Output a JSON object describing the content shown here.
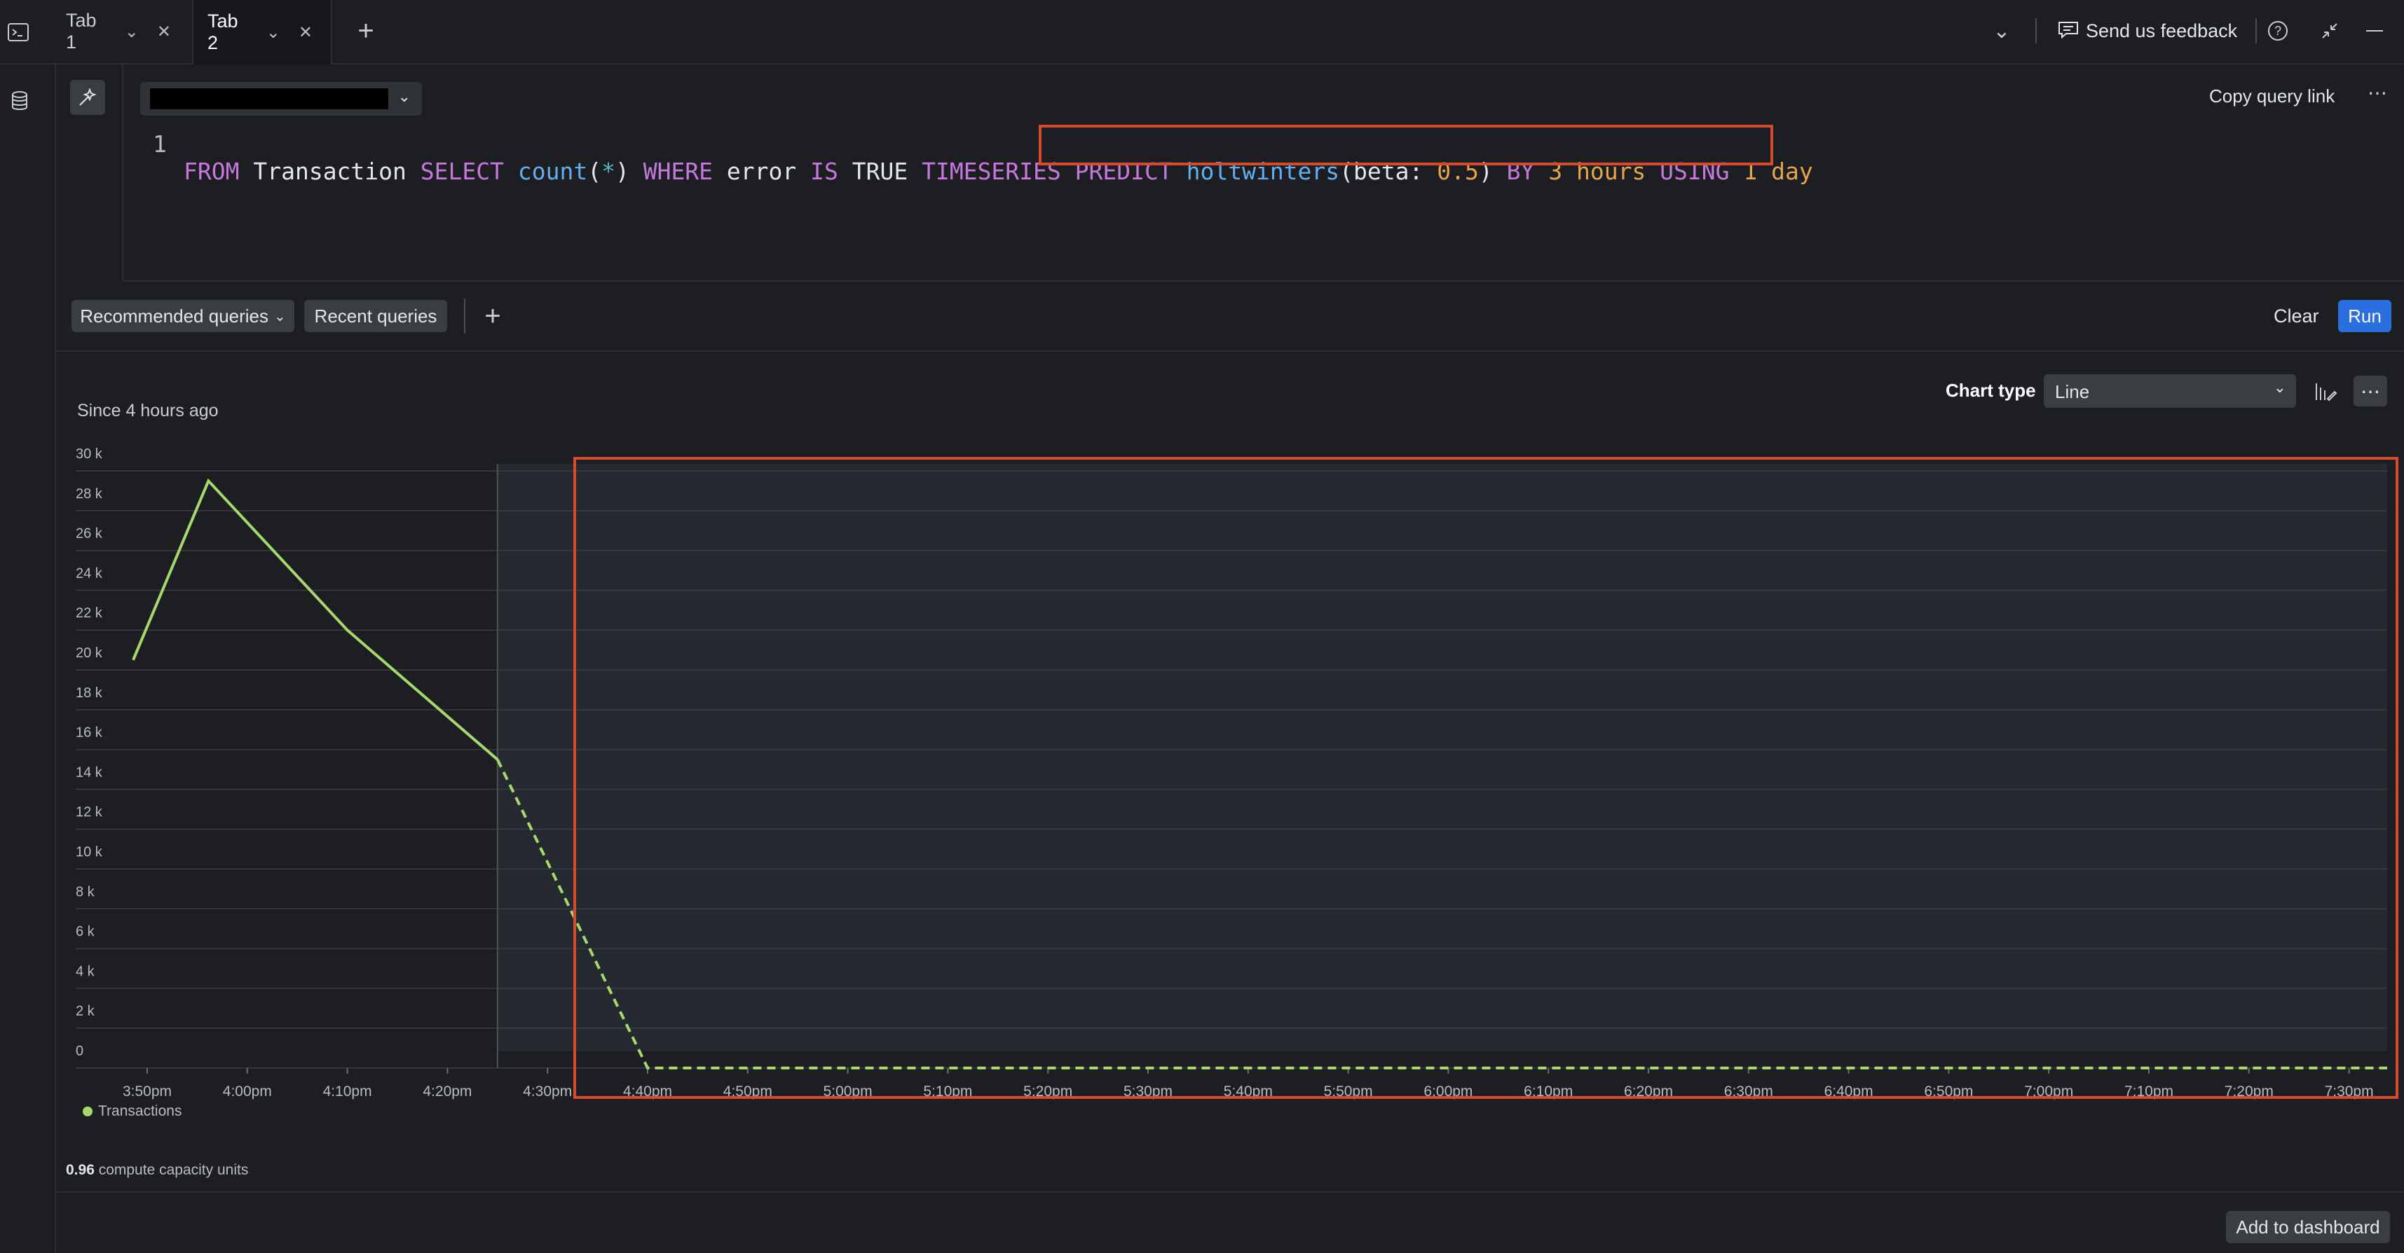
{
  "tabs": [
    {
      "label": "Tab 1",
      "active": false
    },
    {
      "label": "Tab 2",
      "active": true
    }
  ],
  "header": {
    "feedback_label": "Send us feedback"
  },
  "editor": {
    "line_number": "1",
    "copy_query_link": "Copy query link",
    "query_tokens": {
      "t1": "FROM",
      "t2": " Transaction ",
      "t3": "SELECT",
      "t4": " ",
      "t5": "count",
      "t6": "(",
      "t7": "*",
      "t8": ") ",
      "t9": "WHERE",
      "t10": " error ",
      "t11": "IS",
      "t12": " TRUE ",
      "t13": "TIMESERIES",
      "t14": "PREDICT",
      "t15": " ",
      "t16": "holtwinters",
      "t17": "(beta: ",
      "t18": "0.5",
      "t19": ") ",
      "t20": "BY",
      "t21": " ",
      "t22": "3",
      "t23": " hours ",
      "t24": "USING",
      "t25": " ",
      "t26": "1",
      "t27": " day"
    }
  },
  "toolbar": {
    "recommended_queries": "Recommended queries",
    "recent_queries": "Recent queries",
    "clear": "Clear",
    "run": "Run"
  },
  "chart_panel": {
    "chart_type_label": "Chart type",
    "chart_type_value": "Line",
    "since": "Since 4 hours ago",
    "legend": "Transactions",
    "cost_value": "0.96",
    "cost_label": " compute capacity units",
    "add_to_dashboard": "Add to dashboard"
  },
  "colors": {
    "series": "#a6d96a",
    "highlight": "#d64a2d",
    "accent": "#2a6ee0"
  },
  "chart_data": {
    "type": "line",
    "title": "",
    "xlabel": "",
    "ylabel": "",
    "ylim": [
      0,
      30000
    ],
    "yticks": [
      "0",
      "2 k",
      "4 k",
      "6 k",
      "8 k",
      "10 k",
      "12 k",
      "14 k",
      "16 k",
      "18 k",
      "20 k",
      "22 k",
      "24 k",
      "26 k",
      "28 k",
      "30 k"
    ],
    "xticks": [
      "3:50pm",
      "4:00pm",
      "4:10pm",
      "4:20pm",
      "4:30pm",
      "4:40pm",
      "4:50pm",
      "5:00pm",
      "5:10pm",
      "5:20pm",
      "5:30pm",
      "5:40pm",
      "5:50pm",
      "6:00pm",
      "6:10pm",
      "6:20pm",
      "6:30pm",
      "6:40pm",
      "6:50pm",
      "7:00pm",
      "7:10pm",
      "7:20pm",
      "7:30pm"
    ],
    "grid": true,
    "legend_position": "bottom-left",
    "series": [
      {
        "name": "Transactions",
        "style": "solid",
        "x_minutes_after_3_40pm": [
          0,
          15,
          30,
          45
        ],
        "values": [
          20500,
          29500,
          22000,
          15500
        ]
      },
      {
        "name": "Transactions",
        "style": "dashed",
        "x_minutes_after_3_40pm": [
          45,
          60,
          230
        ],
        "values": [
          15500,
          0,
          0
        ]
      }
    ]
  }
}
